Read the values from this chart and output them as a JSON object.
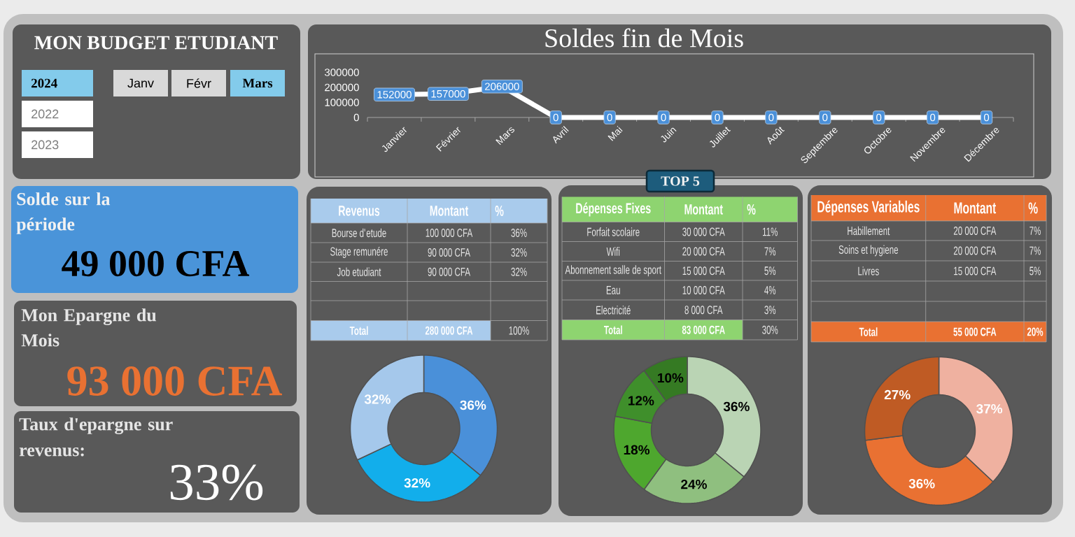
{
  "chart_data": [
    {
      "type": "other",
      "title": "MON BUDGET ETUDIANT",
      "categories": [
        "2024",
        "2022",
        "2023",
        "Janv",
        "Févr",
        "Mars"
      ],
      "colors": [
        "#83cbeb",
        "#ffffff",
        "#ffffff",
        "#d9d9d9",
        "#d9d9d9",
        "#83cbeb"
      ]
    },
    {
      "type": "line",
      "title": "Soldes fin de Mois",
      "categories": [
        "Janvier",
        "Février",
        "Mars",
        "Avril",
        "Mai",
        "Juin",
        "Juillet",
        "Août",
        "Septembre",
        "Octobre",
        "Novembre",
        "Décembre"
      ],
      "values": [
        152000,
        157000,
        206000,
        0,
        0,
        0,
        0,
        0,
        0,
        0,
        0,
        0
      ],
      "color": "#ffffff",
      "ylim": [
        0,
        300000
      ],
      "yticks": [
        0,
        100000,
        200000,
        300000
      ],
      "data_labels": true
    },
    {
      "type": "other",
      "title": "Solde sur la période",
      "annotations": [
        "49 000 CFA"
      ],
      "color": "#000000"
    },
    {
      "type": "other",
      "title": "Mon Epargne  du Mois",
      "annotations": [
        "93 000 CFA"
      ],
      "color": "#e97132"
    },
    {
      "type": "other",
      "title": "Taux d'epargne sur revenus:",
      "annotations": [
        "33%"
      ],
      "color": "#ffffff"
    },
    {
      "type": "other",
      "title": "TOP 5"
    },
    {
      "type": "other",
      "title": "Revenus",
      "categories": [
        "Montant",
        "%"
      ],
      "y_categories": [
        "Bourse d'etude",
        "Stage remunére",
        "Job etudiant",
        null,
        null,
        "Total"
      ],
      "cell_labels": [
        [
          "100 000 CFA",
          "36%"
        ],
        [
          "90 000 CFA",
          "32%"
        ],
        [
          "90 000 CFA",
          "32%"
        ],
        [
          null,
          null
        ],
        [
          null,
          null
        ],
        [
          "280 000 CFA",
          "100%"
        ]
      ],
      "color": "#a9cbec"
    },
    {
      "type": "donut",
      "categories": [
        null,
        null,
        null
      ],
      "values": [
        36,
        32,
        32
      ],
      "colors": [
        "#4a90d9",
        "#12aeeb",
        "#a5c8eb"
      ],
      "value_labels": [
        "36%",
        "32%",
        "32%"
      ]
    },
    {
      "type": "other",
      "title": "Dépenses Fixes",
      "categories": [
        "Montant",
        "%"
      ],
      "y_categories": [
        "Forfait scolaire",
        "Wifi",
        "Abonnement salle de sport",
        "Eau",
        "Electricité",
        "Total"
      ],
      "cell_labels": [
        [
          "30 000 CFA",
          "11%"
        ],
        [
          "20 000 CFA",
          "7%"
        ],
        [
          "15 000 CFA",
          "5%"
        ],
        [
          "10 000 CFA",
          "4%"
        ],
        [
          "8 000 CFA",
          "3%"
        ],
        [
          "83 000 CFA",
          "30%"
        ]
      ],
      "color": "#8ed470"
    },
    {
      "type": "donut",
      "categories": [
        null,
        null,
        null,
        null,
        null
      ],
      "values": [
        36,
        24,
        18,
        12,
        10
      ],
      "colors": [
        "#bad4b4",
        "#8fbf7f",
        "#4ea72e",
        "#3f8f2b",
        "#357a23"
      ],
      "value_labels": [
        "36%",
        "24%",
        "18%",
        "12%",
        "10%"
      ]
    },
    {
      "type": "other",
      "title": "Dépenses Variables",
      "categories": [
        "Montant",
        "%"
      ],
      "y_categories": [
        "Habillement",
        "Soins et hygiene",
        "Livres",
        null,
        null,
        "Total"
      ],
      "cell_labels": [
        [
          "20 000 CFA",
          "7%"
        ],
        [
          "20 000 CFA",
          "7%"
        ],
        [
          "15 000 CFA",
          "5%"
        ],
        [
          null,
          null
        ],
        [
          null,
          null
        ],
        [
          "55 000 CFA",
          "20%"
        ]
      ],
      "color": "#e97132"
    },
    {
      "type": "donut",
      "categories": [
        null,
        null,
        null
      ],
      "values": [
        37,
        36,
        27
      ],
      "colors": [
        "#efb1a0",
        "#e97132",
        "#bf5b24"
      ],
      "value_labels": [
        "37%",
        "36%",
        "27%"
      ]
    }
  ]
}
